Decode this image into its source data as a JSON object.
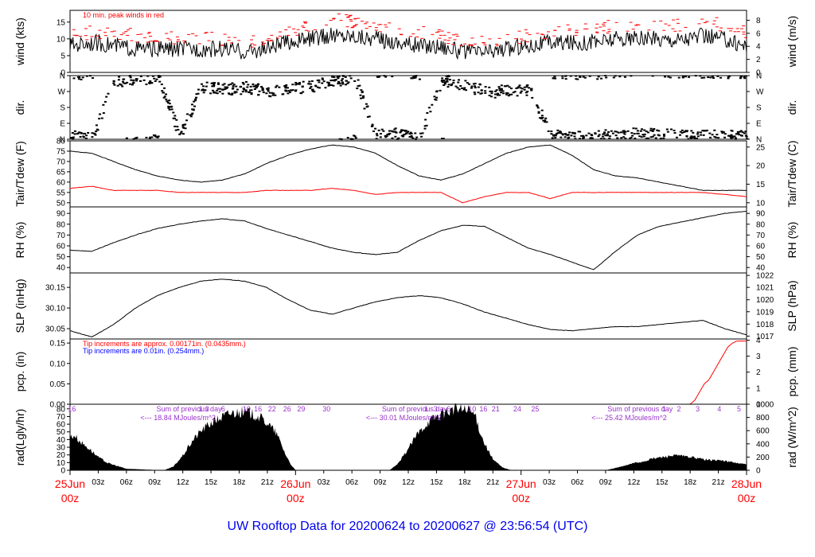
{
  "footer_title": "UW Rooftop Data for 20200624  to  20200627 @ 23:56:54  (UTC)",
  "colors": {
    "black": "#000000",
    "red": "#ff0000",
    "blue": "#0000ff",
    "purple": "#9933cc",
    "title_blue": "#0000ee"
  },
  "chart_data": [
    {
      "type": "line",
      "id": "wind",
      "ylabel_left": "wind (kts)",
      "ylabel_right": "wind (m/s)",
      "ylim": [
        0,
        18.5
      ],
      "yticks": [
        0,
        5,
        10,
        15
      ],
      "right_ticks": [
        {
          "label": "0",
          "at": 0
        },
        {
          "label": "2",
          "at": 3.89
        },
        {
          "label": "4",
          "at": 7.78
        },
        {
          "label": "6",
          "at": 11.66
        },
        {
          "label": "8",
          "at": 15.55
        }
      ],
      "annotation": "10 min. peak winds in red",
      "series": [
        {
          "color": "#000000",
          "values": [
            8,
            9,
            8,
            7,
            7,
            7,
            7,
            7,
            6,
            7,
            9,
            10,
            11,
            11,
            10,
            9,
            8,
            8,
            6,
            6,
            7,
            8,
            9,
            9,
            9,
            10,
            10,
            10,
            10,
            11,
            10,
            8
          ]
        },
        {
          "color": "#ff0000",
          "values": [
            11,
            12,
            12,
            11,
            11,
            10,
            10,
            10,
            9,
            10,
            12,
            14,
            16,
            15,
            14,
            13,
            12,
            11,
            9,
            9,
            10,
            11,
            12,
            13,
            13,
            14,
            14,
            14,
            14,
            15,
            14,
            12
          ]
        }
      ]
    },
    {
      "type": "scatter",
      "id": "dir",
      "ylabel_left": "dir.",
      "ylabel_right": "dir.",
      "ylim": [
        0,
        360
      ],
      "yticks": [
        0,
        90,
        180,
        270,
        360
      ],
      "ytick_labels": [
        "N",
        "E",
        "S",
        "W",
        "N"
      ],
      "values": [
        10,
        15,
        330,
        340,
        350,
        20,
        300,
        280,
        290,
        270,
        280,
        300,
        330,
        350,
        20,
        30,
        10,
        340,
        300,
        270,
        270,
        280,
        20,
        10,
        15,
        20,
        30,
        25,
        20,
        15,
        20,
        15
      ]
    },
    {
      "type": "line",
      "id": "temp",
      "ylabel_left": "Tair/Tdew (F)",
      "ylabel_right": "Tair/Tdew (C)",
      "ylim": [
        48,
        80
      ],
      "yticks": [
        50,
        55,
        60,
        65,
        70,
        75,
        80
      ],
      "right_ticks": [
        {
          "label": "10",
          "at": 50
        },
        {
          "label": "15",
          "at": 59
        },
        {
          "label": "20",
          "at": 68
        },
        {
          "label": "25",
          "at": 77
        }
      ],
      "series": [
        {
          "color": "#000000",
          "values": [
            75,
            74,
            70,
            66,
            63,
            61,
            60,
            61,
            64,
            69,
            73,
            76,
            78,
            77,
            74,
            68,
            63,
            61,
            64,
            69,
            74,
            77,
            78,
            73,
            66,
            63,
            62,
            60,
            58,
            56,
            56,
            56
          ]
        },
        {
          "color": "#ff0000",
          "values": [
            57,
            58,
            56,
            56,
            56,
            55,
            55,
            55,
            55,
            56,
            56,
            56,
            57,
            56,
            54,
            55,
            55,
            55,
            50,
            53,
            55,
            55,
            52,
            55,
            55,
            55,
            55,
            55,
            55,
            55,
            54,
            53
          ]
        }
      ]
    },
    {
      "type": "line",
      "id": "rh",
      "ylabel_left": "RH (%)",
      "ylabel_right": "RH (%)",
      "ylim": [
        35,
        96
      ],
      "yticks": [
        40,
        50,
        60,
        70,
        80,
        90
      ],
      "series": [
        {
          "color": "#000000",
          "values": [
            56,
            55,
            63,
            70,
            76,
            80,
            83,
            85,
            83,
            76,
            70,
            64,
            58,
            54,
            52,
            54,
            65,
            74,
            79,
            78,
            68,
            58,
            52,
            45,
            38,
            55,
            70,
            78,
            82,
            86,
            90,
            92
          ]
        }
      ]
    },
    {
      "type": "line",
      "id": "slp",
      "ylabel_left": "SLP (inHg)",
      "ylabel_right": "SLP (hPa)",
      "ylim": [
        30.025,
        30.185
      ],
      "yticks": [
        30.05,
        30.1,
        30.15
      ],
      "ytick_labels": [
        "30.05",
        "30.10",
        "30.15"
      ],
      "right_ticks": [
        {
          "label": "1017",
          "at": 30.032
        },
        {
          "label": "1018",
          "at": 30.061
        },
        {
          "label": "1019",
          "at": 30.091
        },
        {
          "label": "1020",
          "at": 30.12
        },
        {
          "label": "1021",
          "at": 30.15
        },
        {
          "label": "1022",
          "at": 30.179
        }
      ],
      "series": [
        {
          "color": "#000000",
          "values": [
            30.045,
            30.03,
            30.06,
            30.1,
            30.13,
            30.15,
            30.165,
            30.17,
            30.165,
            30.15,
            30.12,
            30.095,
            30.085,
            30.1,
            30.115,
            30.125,
            30.13,
            30.125,
            30.11,
            30.09,
            30.075,
            30.06,
            30.048,
            30.045,
            30.05,
            30.055,
            30.055,
            30.06,
            30.065,
            30.07,
            30.05,
            30.035
          ]
        }
      ]
    },
    {
      "type": "line",
      "id": "pcp",
      "ylabel_left": "pcp. (in)",
      "ylabel_right": "pcp. (mm)",
      "ylim": [
        0,
        0.16
      ],
      "yticks": [
        0.0,
        0.05,
        0.1,
        0.15
      ],
      "ytick_labels": [
        "0.00",
        "0.05",
        "0.10",
        "0.15"
      ],
      "right_ticks": [
        {
          "label": "0",
          "at": 0
        },
        {
          "label": "1",
          "at": 0.0394
        },
        {
          "label": "2",
          "at": 0.0787
        },
        {
          "label": "3",
          "at": 0.118
        },
        {
          "label": "4",
          "at": 0.157
        }
      ],
      "annotations": [
        "Tip increments are approx. 0.00171in. (0.0435mm.)",
        "Tip increments are 0.01in. (0.254mm.)"
      ],
      "series": [
        {
          "color": "#ff0000",
          "x": [
            0,
            66,
            66.5,
            67,
            67.5,
            68,
            68.5,
            69,
            69.5,
            70,
            70.5,
            71,
            72
          ],
          "values": [
            0,
            0,
            0.01,
            0.03,
            0.05,
            0.06,
            0.08,
            0.1,
            0.12,
            0.14,
            0.15,
            0.155,
            0.155
          ]
        }
      ]
    },
    {
      "type": "area",
      "id": "rad",
      "ylabel_left": "rad(Lgly/hr)",
      "ylabel_right": "rad (W/m^2)",
      "ylim": [
        0,
        86
      ],
      "yticks": [
        0,
        10,
        20,
        30,
        40,
        50,
        60,
        70,
        80
      ],
      "right_ticks": [
        {
          "label": "0",
          "at": 0
        },
        {
          "label": "200",
          "at": 17.2
        },
        {
          "label": "400",
          "at": 34.4
        },
        {
          "label": "600",
          "at": 51.6
        },
        {
          "label": "800",
          "at": 68.8
        },
        {
          "label": "1000",
          "at": 86
        }
      ],
      "series": [
        {
          "color": "#000000",
          "x": [
            0,
            0.5,
            1,
            2,
            3,
            4,
            5,
            6,
            10,
            11,
            12,
            13,
            14,
            15,
            16,
            17,
            18,
            19,
            20,
            21,
            22,
            23,
            23.5,
            24,
            34,
            35,
            36,
            37,
            38,
            39,
            40,
            41,
            42,
            43,
            44,
            45,
            46,
            46.5,
            47,
            57,
            58,
            59,
            60,
            61,
            62,
            63,
            64,
            65,
            66,
            67,
            68,
            69,
            70,
            71,
            72
          ],
          "values": [
            45,
            48,
            40,
            30,
            18,
            10,
            6,
            2,
            0,
            5,
            20,
            40,
            55,
            65,
            72,
            78,
            80,
            79,
            74,
            65,
            50,
            20,
            8,
            0,
            0,
            10,
            30,
            50,
            65,
            74,
            80,
            84,
            83,
            78,
            40,
            15,
            4,
            2,
            0,
            0,
            3,
            6,
            10,
            12,
            16,
            18,
            20,
            20,
            18,
            16,
            14,
            14,
            12,
            10,
            8
          ]
        }
      ],
      "day_sums": [
        {
          "title": "Sum of previous day",
          "value": "<--- 18.84 MJoules/m^2",
          "hour": 7.5
        },
        {
          "title": "Sum of previous day",
          "value": "<--- 30.01 MJoules/m^2",
          "hour": 31.5
        },
        {
          "title": "Sum of previous day",
          "value": "<--- 25.42 MJoules/m^2",
          "hour": 55.5
        }
      ],
      "tick_numbers": [
        {
          "label": "16",
          "hour": 0.2
        },
        {
          "label": "1",
          "hour": 13.9
        },
        {
          "label": "3",
          "hour": 14.6
        },
        {
          "label": "6",
          "hour": 16.3
        },
        {
          "label": "10",
          "hour": 18.8
        },
        {
          "label": "16",
          "hour": 20
        },
        {
          "label": "22",
          "hour": 21.5
        },
        {
          "label": "26",
          "hour": 23.1
        },
        {
          "label": "29",
          "hour": 24.6
        },
        {
          "label": "30",
          "hour": 27.3
        },
        {
          "label": "1",
          "hour": 37.9
        },
        {
          "label": "3",
          "hour": 38.9
        },
        {
          "label": "6",
          "hour": 40.3
        },
        {
          "label": "10",
          "hour": 42.8
        },
        {
          "label": "16",
          "hour": 44
        },
        {
          "label": "21",
          "hour": 45.3
        },
        {
          "label": "24",
          "hour": 47.6
        },
        {
          "label": "25",
          "hour": 49.5
        },
        {
          "label": "1",
          "hour": 63.2
        },
        {
          "label": "2",
          "hour": 64.8
        },
        {
          "label": "3",
          "hour": 66.8
        },
        {
          "label": "4",
          "hour": 69.1
        },
        {
          "label": "5",
          "hour": 71.2
        }
      ]
    }
  ],
  "x_axis": {
    "range_hours": [
      0,
      72
    ],
    "hour_ticks": [
      "03z",
      "06z",
      "09z",
      "12z",
      "15z",
      "18z",
      "21z",
      "03z",
      "06z",
      "09z",
      "12z",
      "15z",
      "18z",
      "21z",
      "03z",
      "06z",
      "09z",
      "12z",
      "15z",
      "18z",
      "21z"
    ],
    "hour_tick_positions": [
      3,
      6,
      9,
      12,
      15,
      18,
      21,
      27,
      30,
      33,
      36,
      39,
      42,
      45,
      51,
      54,
      57,
      60,
      63,
      66,
      69
    ],
    "day_labels": [
      {
        "date": "25Jun",
        "time": "00z",
        "hour": 0
      },
      {
        "date": "26Jun",
        "time": "00z",
        "hour": 24
      },
      {
        "date": "27Jun",
        "time": "00z",
        "hour": 48
      },
      {
        "date": "28Jun",
        "time": "00z",
        "hour": 72
      }
    ]
  }
}
